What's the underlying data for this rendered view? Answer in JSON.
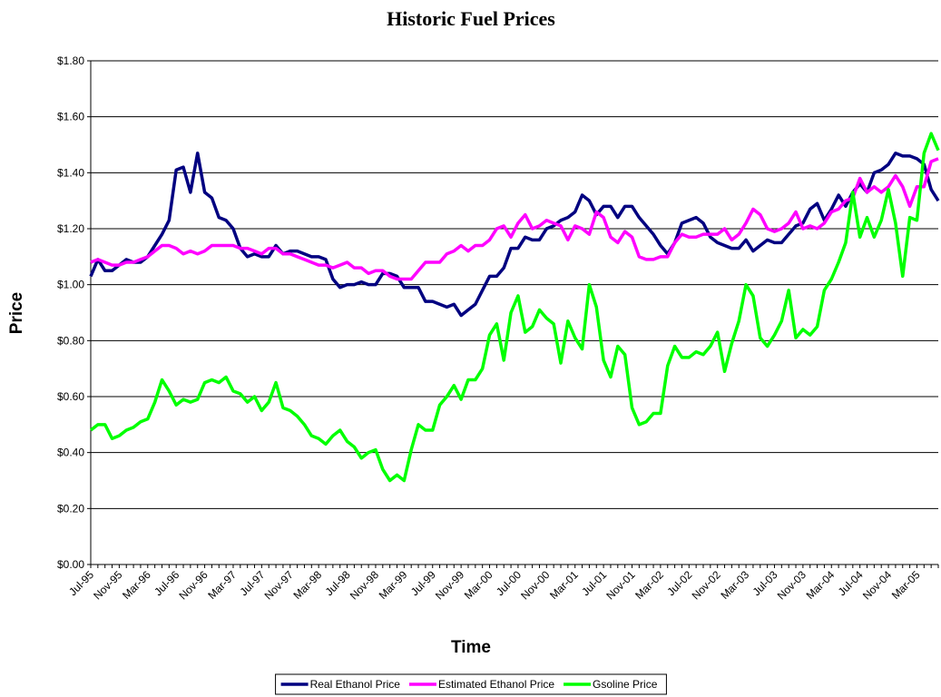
{
  "chart_data": {
    "type": "line",
    "title": "Historic Fuel Prices",
    "x_label": "Time",
    "y_label": "Price",
    "categories": [
      "Jul-95",
      null,
      null,
      null,
      "Nov-95",
      null,
      null,
      null,
      "Mar-96",
      null,
      null,
      null,
      "Jul-96",
      null,
      null,
      null,
      "Nov-96",
      null,
      null,
      null,
      "Mar-97",
      null,
      null,
      null,
      "Jul-97",
      null,
      null,
      null,
      "Nov-97",
      null,
      null,
      null,
      "Mar-98",
      null,
      null,
      null,
      "Jul-98",
      null,
      null,
      null,
      "Nov-98",
      null,
      null,
      null,
      "Mar-99",
      null,
      null,
      null,
      "Jul-99",
      null,
      null,
      null,
      "Nov-99",
      null,
      null,
      null,
      "Mar-00",
      null,
      null,
      null,
      "Jul-00",
      null,
      null,
      null,
      "Nov-00",
      null,
      null,
      null,
      "Mar-01",
      null,
      null,
      null,
      "Jul-01",
      null,
      null,
      null,
      "Nov-01",
      null,
      null,
      null,
      "Mar-02",
      null,
      null,
      null,
      "Jul-02",
      null,
      null,
      null,
      "Nov-02",
      null,
      null,
      null,
      "Mar-03",
      null,
      null,
      null,
      "Jul-03",
      null,
      null,
      null,
      "Nov-03",
      null,
      null,
      null,
      "Mar-04",
      null,
      null,
      null,
      "Jul-04",
      null,
      null,
      null,
      "Nov-04",
      null,
      null,
      null,
      "Mar-05",
      null,
      null,
      null
    ],
    "series": [
      {
        "name": "Real Ethanol Price",
        "color": "#000080",
        "values": [
          1.03,
          1.09,
          1.05,
          1.05,
          1.07,
          1.09,
          1.08,
          1.08,
          1.1,
          1.14,
          1.18,
          1.23,
          1.41,
          1.42,
          1.33,
          1.47,
          1.33,
          1.31,
          1.24,
          1.23,
          1.2,
          1.13,
          1.1,
          1.11,
          1.1,
          1.1,
          1.14,
          1.11,
          1.12,
          1.12,
          1.11,
          1.1,
          1.1,
          1.09,
          1.02,
          0.99,
          1.0,
          1.0,
          1.01,
          1.0,
          1.0,
          1.04,
          1.04,
          1.03,
          0.99,
          0.99,
          0.99,
          0.94,
          0.94,
          0.93,
          0.92,
          0.93,
          0.89,
          0.91,
          0.93,
          0.98,
          1.03,
          1.03,
          1.06,
          1.13,
          1.13,
          1.17,
          1.16,
          1.16,
          1.2,
          1.21,
          1.23,
          1.24,
          1.26,
          1.32,
          1.3,
          1.25,
          1.28,
          1.28,
          1.24,
          1.28,
          1.28,
          1.24,
          1.21,
          1.18,
          1.14,
          1.11,
          1.15,
          1.22,
          1.23,
          1.24,
          1.22,
          1.17,
          1.15,
          1.14,
          1.13,
          1.13,
          1.16,
          1.12,
          1.14,
          1.16,
          1.15,
          1.15,
          1.18,
          1.21,
          1.22,
          1.27,
          1.29,
          1.23,
          1.27,
          1.32,
          1.28,
          1.33,
          1.36,
          1.33,
          1.4,
          1.41,
          1.43,
          1.47,
          1.46,
          1.46,
          1.45,
          1.43,
          1.34,
          1.3
        ]
      },
      {
        "name": "Estimated Ethanol Price",
        "color": "#ff00ff",
        "values": [
          1.08,
          1.09,
          1.08,
          1.07,
          1.07,
          1.08,
          1.08,
          1.09,
          1.1,
          1.12,
          1.14,
          1.14,
          1.13,
          1.11,
          1.12,
          1.11,
          1.12,
          1.14,
          1.14,
          1.14,
          1.14,
          1.13,
          1.13,
          1.12,
          1.11,
          1.13,
          1.13,
          1.11,
          1.11,
          1.1,
          1.09,
          1.08,
          1.07,
          1.07,
          1.06,
          1.07,
          1.08,
          1.06,
          1.06,
          1.04,
          1.05,
          1.05,
          1.03,
          1.02,
          1.02,
          1.02,
          1.05,
          1.08,
          1.08,
          1.08,
          1.11,
          1.12,
          1.14,
          1.12,
          1.14,
          1.14,
          1.16,
          1.2,
          1.21,
          1.17,
          1.22,
          1.25,
          1.2,
          1.21,
          1.23,
          1.22,
          1.21,
          1.16,
          1.21,
          1.2,
          1.18,
          1.26,
          1.24,
          1.17,
          1.15,
          1.19,
          1.17,
          1.1,
          1.09,
          1.09,
          1.1,
          1.1,
          1.15,
          1.18,
          1.17,
          1.17,
          1.18,
          1.18,
          1.18,
          1.2,
          1.16,
          1.18,
          1.22,
          1.27,
          1.25,
          1.2,
          1.19,
          1.2,
          1.22,
          1.26,
          1.2,
          1.21,
          1.2,
          1.22,
          1.26,
          1.27,
          1.3,
          1.31,
          1.38,
          1.33,
          1.35,
          1.33,
          1.35,
          1.39,
          1.35,
          1.28,
          1.35,
          1.35,
          1.44,
          1.45
        ]
      },
      {
        "name": "Gsoline Price",
        "color": "#00ff00",
        "values": [
          0.48,
          0.5,
          0.5,
          0.45,
          0.46,
          0.48,
          0.49,
          0.51,
          0.52,
          0.58,
          0.66,
          0.62,
          0.57,
          0.59,
          0.58,
          0.59,
          0.65,
          0.66,
          0.65,
          0.67,
          0.62,
          0.61,
          0.58,
          0.6,
          0.55,
          0.58,
          0.65,
          0.56,
          0.55,
          0.53,
          0.5,
          0.46,
          0.45,
          0.43,
          0.46,
          0.48,
          0.44,
          0.42,
          0.38,
          0.4,
          0.41,
          0.34,
          0.3,
          0.32,
          0.3,
          0.41,
          0.5,
          0.48,
          0.48,
          0.57,
          0.6,
          0.64,
          0.59,
          0.66,
          0.66,
          0.7,
          0.82,
          0.86,
          0.73,
          0.9,
          0.96,
          0.83,
          0.85,
          0.91,
          0.88,
          0.86,
          0.72,
          0.87,
          0.81,
          0.77,
          1.0,
          0.92,
          0.73,
          0.67,
          0.78,
          0.75,
          0.56,
          0.5,
          0.51,
          0.54,
          0.54,
          0.71,
          0.78,
          0.74,
          0.74,
          0.76,
          0.75,
          0.78,
          0.83,
          0.69,
          0.79,
          0.87,
          1.0,
          0.96,
          0.81,
          0.78,
          0.82,
          0.87,
          0.98,
          0.81,
          0.84,
          0.82,
          0.85,
          0.98,
          1.02,
          1.08,
          1.15,
          1.33,
          1.17,
          1.24,
          1.17,
          1.23,
          1.34,
          1.22,
          1.03,
          1.24,
          1.23,
          1.47,
          1.54,
          1.48
        ]
      }
    ],
    "ylim": [
      0,
      1.8
    ],
    "yticks": [
      {
        "value": 0,
        "label": "$0.00"
      },
      {
        "value": 0.2,
        "label": "$0.20"
      },
      {
        "value": 0.4,
        "label": "$0.40"
      },
      {
        "value": 0.6,
        "label": "$0.60"
      },
      {
        "value": 0.8,
        "label": "$0.80"
      },
      {
        "value": 1.0,
        "label": "$1.00"
      },
      {
        "value": 1.2,
        "label": "$1.20"
      },
      {
        "value": 1.4,
        "label": "$1.40"
      },
      {
        "value": 1.6,
        "label": "$1.60"
      },
      {
        "value": 1.8,
        "label": "$1.80"
      }
    ],
    "grid": true,
    "legend": "bottom"
  }
}
